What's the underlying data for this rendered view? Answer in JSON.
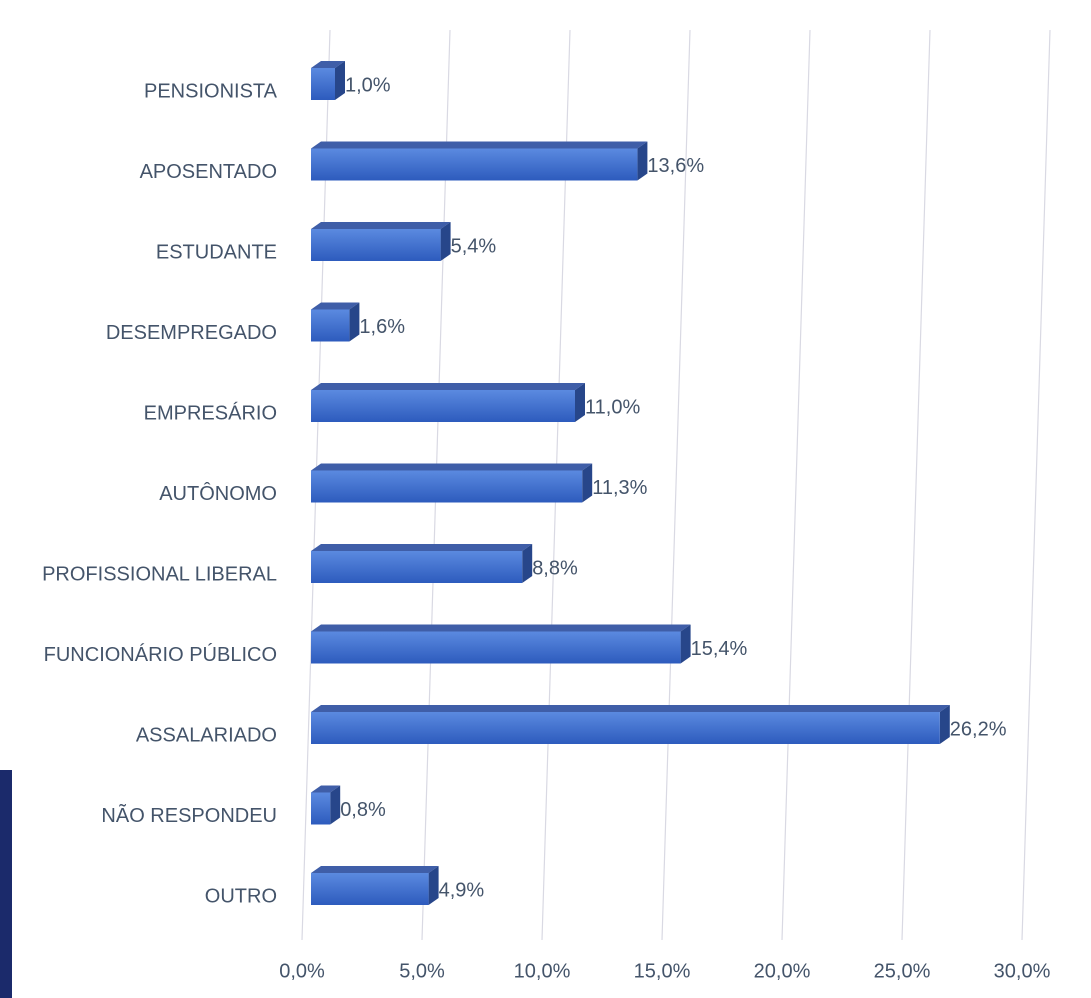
{
  "chart_data": {
    "type": "bar3d_horizontal",
    "categories": [
      "PENSIONISTA",
      "APOSENTADO",
      "ESTUDANTE",
      "DESEMPREGADO",
      "EMPRESÁRIO",
      "AUTÔNOMO",
      "PROFISSIONAL LIBERAL",
      "FUNCIONÁRIO PÚBLICO",
      "ASSALARIADO",
      "NÃO RESPONDEU",
      "OUTRO"
    ],
    "values": [
      1.0,
      13.6,
      5.4,
      1.6,
      11.0,
      11.3,
      8.8,
      15.4,
      26.2,
      0.8,
      4.9
    ],
    "value_labels": [
      "1,0%",
      "13,6%",
      "5,4%",
      "1,6%",
      "11,0%",
      "11,3%",
      "8,8%",
      "15,4%",
      "26,2%",
      "0,8%",
      "4,9%"
    ],
    "color": "#3a6bcc",
    "xlim": [
      0,
      30
    ],
    "xticks": [
      {
        "value": 0,
        "label": "0,0%"
      },
      {
        "value": 5,
        "label": "5,0%"
      },
      {
        "value": 10,
        "label": "10,0%"
      },
      {
        "value": 15,
        "label": "15,0%"
      },
      {
        "value": 20,
        "label": "20,0%"
      },
      {
        "value": 25,
        "label": "25,0%"
      },
      {
        "value": 30,
        "label": "30,0%"
      }
    ],
    "grid": true
  }
}
